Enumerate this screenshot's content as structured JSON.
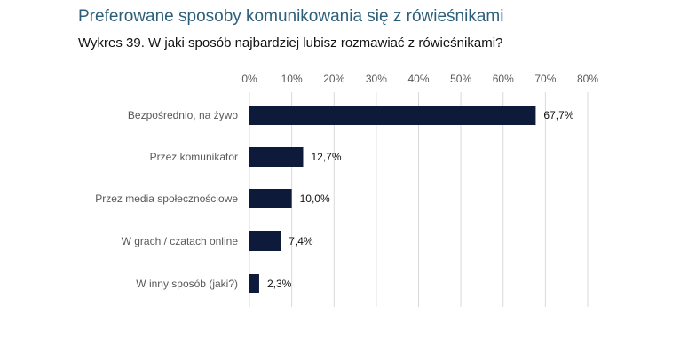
{
  "section_title": "Preferowane sposoby komunikowania się z rówieśnikami",
  "chart_data": {
    "type": "bar",
    "orientation": "horizontal",
    "title": "Wykres 39. W jaki sposób najbardziej lubisz rozmawiać z rówieśnikami?",
    "categories": [
      "Bezpośrednio, na żywo",
      "Przez komunikator",
      "Przez media społecznościowe",
      "W grach / czatach online",
      "W inny sposób (jaki?)"
    ],
    "values": [
      67.7,
      12.7,
      10.0,
      7.4,
      2.3
    ],
    "value_labels": [
      "67,7%",
      "12,7%",
      "10,0%",
      "7,4%",
      "2,3%"
    ],
    "xlim": [
      0,
      80
    ],
    "xticks": [
      0,
      10,
      20,
      30,
      40,
      50,
      60,
      70,
      80
    ],
    "xtick_labels": [
      "0%",
      "10%",
      "20%",
      "30%",
      "40%",
      "50%",
      "60%",
      "70%",
      "80%"
    ],
    "axis_position": "top",
    "grid": true,
    "bar_color": "#0d1a3a",
    "grid_color": "#d9d9d9"
  }
}
